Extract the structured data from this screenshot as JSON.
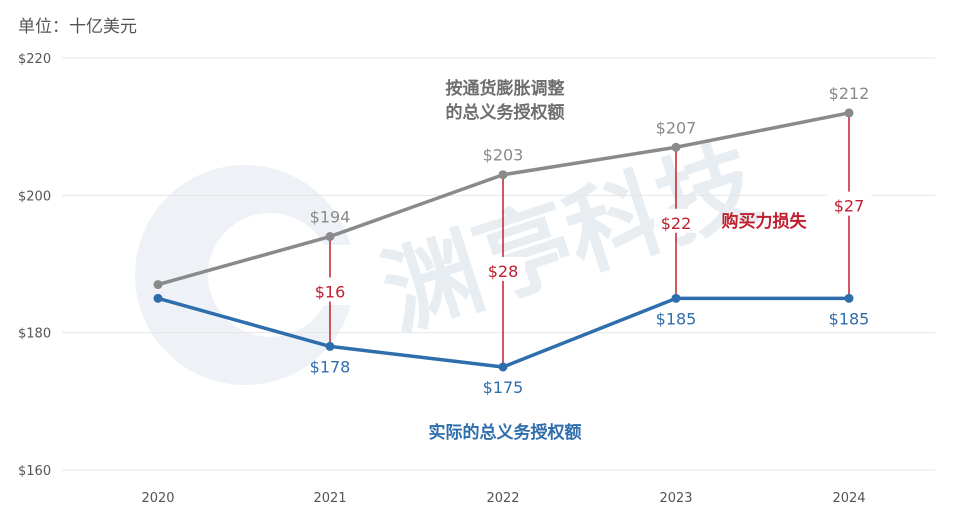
{
  "unit_label": "单位：十亿美元",
  "watermark": "渊亭科技",
  "colors": {
    "inflation": "#8a8a8a",
    "actual": "#2f6ead",
    "gap": "#c0202e",
    "grid": "#e6e6e6",
    "tick": "#555555",
    "watermark": "#e8edf2"
  },
  "chart_data": {
    "type": "line",
    "x": [
      "2020",
      "2021",
      "2022",
      "2023",
      "2024"
    ],
    "ylim": [
      160,
      220
    ],
    "yticks": [
      160,
      180,
      200,
      220
    ],
    "ytick_labels": [
      "$160",
      "$180",
      "$200",
      "$220"
    ],
    "grid": true,
    "series": [
      {
        "name": "按通货膨胀调整的总义务授权额",
        "name_lines": [
          "按通货膨胀调整",
          "的总义务授权额"
        ],
        "values": [
          187,
          194,
          203,
          207,
          212
        ],
        "labels": [
          "",
          "$194",
          "$203",
          "$207",
          "$212"
        ]
      },
      {
        "name": "实际的总义务授权额",
        "values": [
          185,
          178,
          175,
          185,
          185
        ],
        "labels": [
          "",
          "$178",
          "$175",
          "$185",
          "$185"
        ]
      }
    ],
    "gaps": [
      {
        "x": "2021",
        "label": "$16"
      },
      {
        "x": "2022",
        "label": "$28"
      },
      {
        "x": "2023",
        "label": "$22"
      },
      {
        "x": "2024",
        "label": "$27"
      }
    ],
    "gap_title": "购买力损失"
  }
}
